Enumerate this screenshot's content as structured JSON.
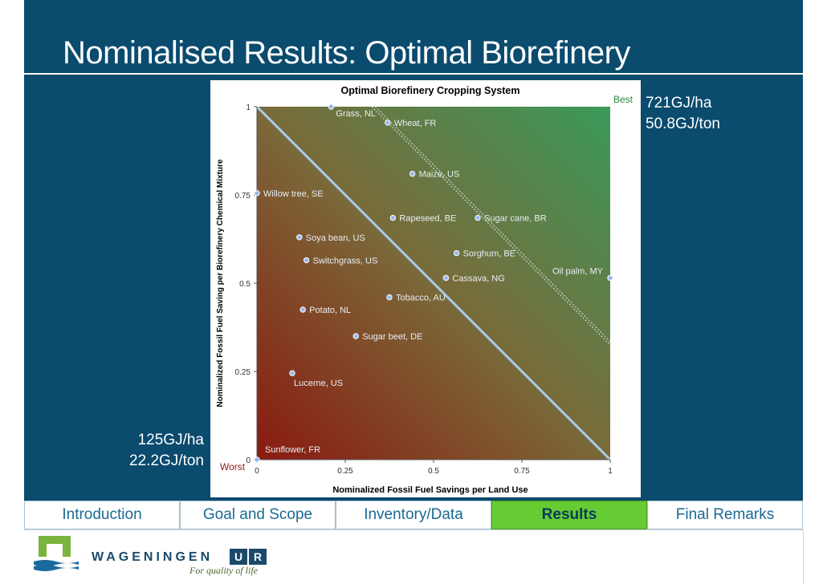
{
  "slide": {
    "title": "Nominalised Results: Optimal Biorefinery",
    "best_label_line1": "721GJ/ha",
    "best_label_line2": "50.8GJ/ton",
    "worst_label_line1": "125GJ/ha",
    "worst_label_line2": "22.2GJ/ton"
  },
  "nav": {
    "tabs": [
      {
        "label": "Introduction",
        "active": false
      },
      {
        "label": "Goal and Scope",
        "active": false
      },
      {
        "label": "Inventory/Data",
        "active": false
      },
      {
        "label": "Results",
        "active": true
      },
      {
        "label": "Final Remarks",
        "active": false
      }
    ]
  },
  "logo": {
    "name": "WAGENINGEN",
    "ur_letters": [
      "U",
      "R"
    ],
    "tagline": "For quality of life"
  },
  "colors": {
    "slide_bg": "#0a4b6e",
    "best_corner": "#3a9a5a",
    "worst_corner": "#8a1a10",
    "point_fill": "#9ab8ee",
    "diagonal": "#a8cce8",
    "active_tab": "#66cc33"
  },
  "chart_data": {
    "type": "scatter",
    "title": "Optimal Biorefinery Cropping System",
    "xlabel": "Nominalized Fossil Fuel Savings per Land Use",
    "ylabel": "Nominalized Fossil Fuel Saving per Biorefinery Chemical Mixture",
    "xlim": [
      0,
      1
    ],
    "ylim": [
      0,
      1
    ],
    "xticks": [
      "0",
      "0.25",
      "0.5",
      "0.75",
      "1"
    ],
    "yticks": [
      "0",
      "0.25",
      "0.5",
      "0.75",
      "1"
    ],
    "corner_best": "Best",
    "corner_worst": "Worst",
    "points": [
      {
        "label": "Grass, NL",
        "x": 0.21,
        "y": 1.0
      },
      {
        "label": "Wheat, FR",
        "x": 0.37,
        "y": 0.955
      },
      {
        "label": "Maize, US",
        "x": 0.44,
        "y": 0.81
      },
      {
        "label": "Willow tree, SE",
        "x": 0.0,
        "y": 0.755
      },
      {
        "label": "Rapeseed, BE",
        "x": 0.385,
        "y": 0.685
      },
      {
        "label": "Sugar cane, BR",
        "x": 0.625,
        "y": 0.685
      },
      {
        "label": "Soya bean, US",
        "x": 0.12,
        "y": 0.63
      },
      {
        "label": "Sorghum, BE",
        "x": 0.565,
        "y": 0.585
      },
      {
        "label": "Switchgrass, US",
        "x": 0.14,
        "y": 0.565
      },
      {
        "label": "Oil palm, MY",
        "x": 1.0,
        "y": 0.515
      },
      {
        "label": "Cassava, NG",
        "x": 0.535,
        "y": 0.515
      },
      {
        "label": "Tobacco, AU",
        "x": 0.375,
        "y": 0.46
      },
      {
        "label": "Potato, NL",
        "x": 0.13,
        "y": 0.425
      },
      {
        "label": "Sugar beet, DE",
        "x": 0.28,
        "y": 0.35
      },
      {
        "label": "Lucerne, US",
        "x": 0.1,
        "y": 0.245
      },
      {
        "label": "Sunflower, FR",
        "x": 0.0,
        "y": 0.0
      }
    ],
    "iso_lines": [
      {
        "style": "solid",
        "intercept": 1.0
      },
      {
        "style": "dotted",
        "intercept": 1.325
      },
      {
        "style": "dotted",
        "intercept": 1.335
      }
    ]
  }
}
